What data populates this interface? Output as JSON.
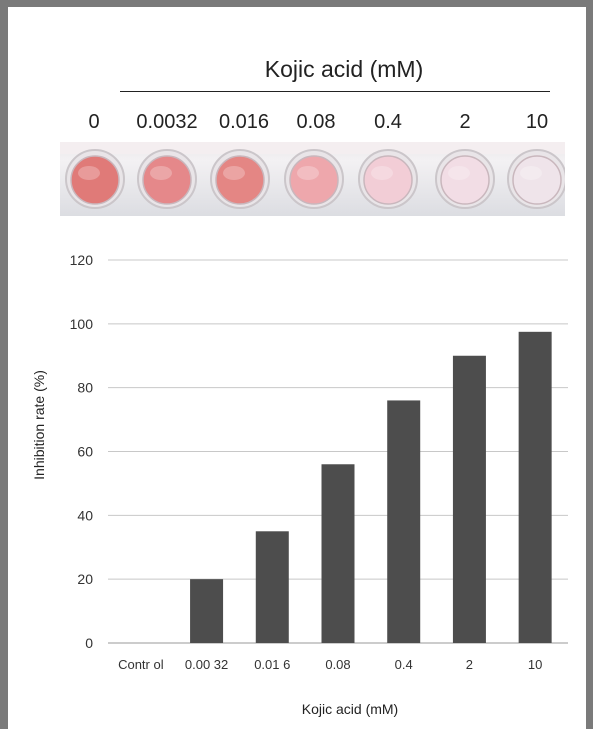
{
  "figure_header": {
    "title": "Kojic acid (mM)",
    "concentrations": [
      "0",
      "0.0032",
      "0.016",
      "0.08",
      "0.4",
      "2",
      "10"
    ]
  },
  "colors": {
    "bar": "#4d4d4d",
    "grid": "#c8c8c8",
    "frame": "#7a7a7a",
    "wells": [
      "#e07a78",
      "#e5888a",
      "#e48684",
      "#eea7ac",
      "#f2cdd6",
      "#f2dde5",
      "#efe4ea"
    ]
  },
  "chart_data": {
    "type": "bar",
    "categories": [
      "Contr ol",
      "0.00 32",
      "0.01 6",
      "0.08",
      "0.4",
      "2",
      "10"
    ],
    "values": [
      0,
      20,
      35,
      56,
      76,
      90,
      97.5
    ],
    "title": "",
    "xlabel": "Kojic acid (mM)",
    "ylabel": "Inhibition rate (%)",
    "ylim": [
      0,
      120
    ],
    "yticks": [
      0,
      20,
      40,
      60,
      80,
      100,
      120
    ],
    "grid": true,
    "legend": "none"
  }
}
